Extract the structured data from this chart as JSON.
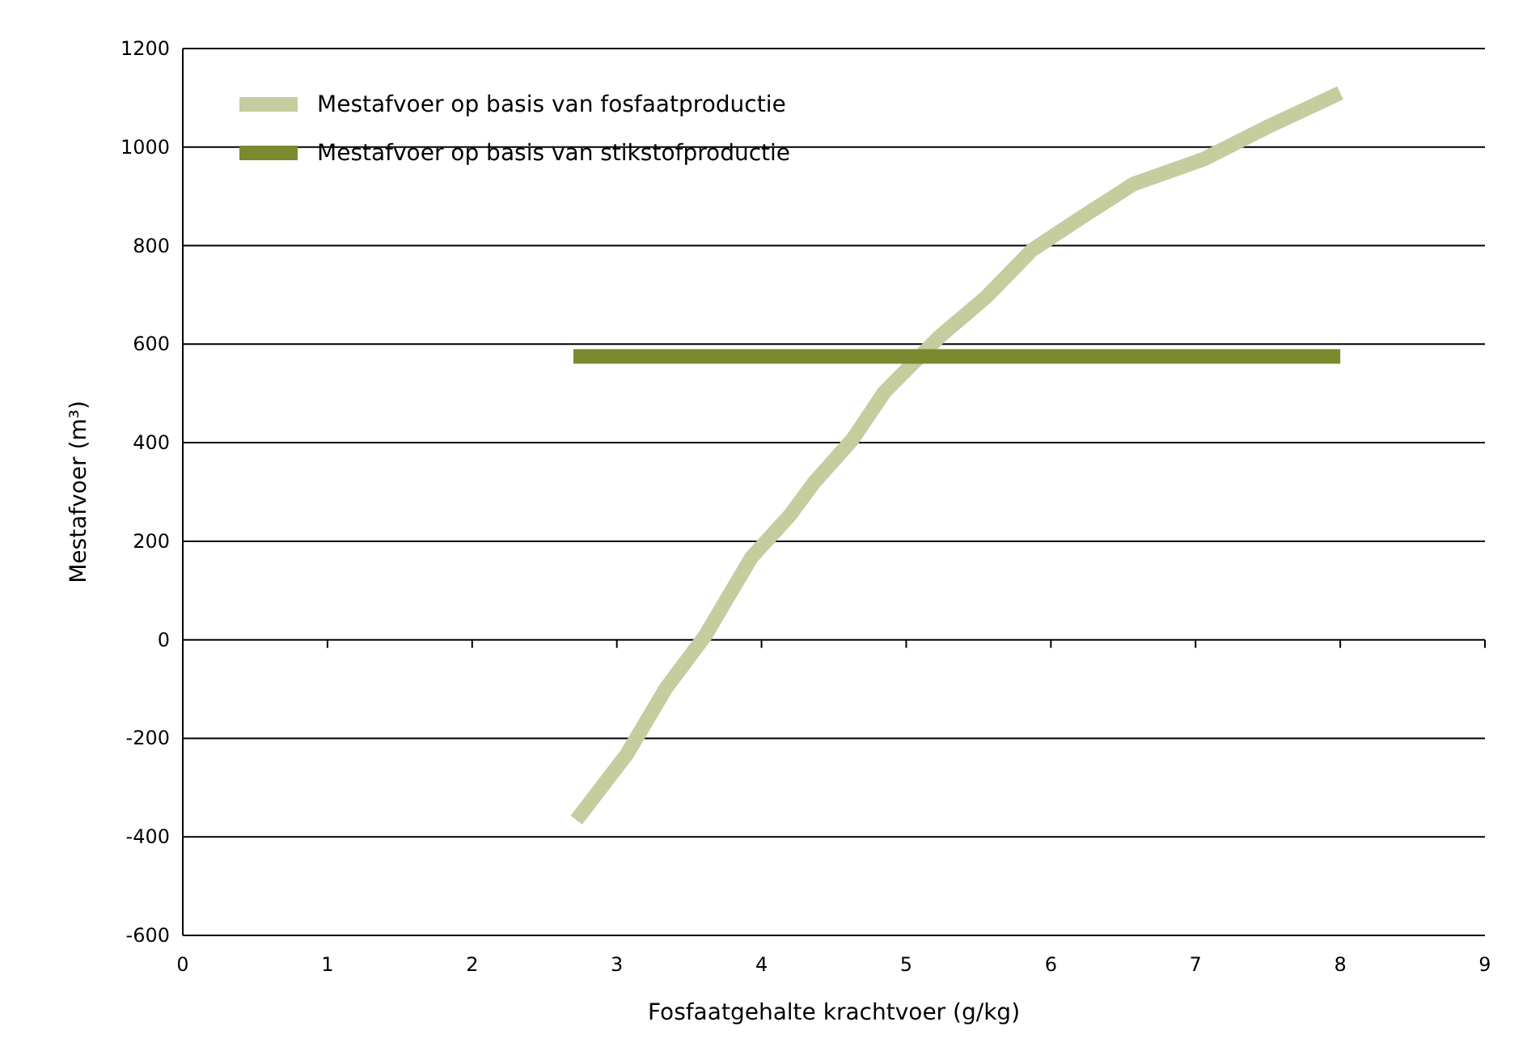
{
  "chart_data": {
    "type": "line",
    "xlabel": "Fosfaatgehalte krachtvoer (g/kg)",
    "ylabel": "Mestafvoer (m³)",
    "xlim": [
      0,
      9
    ],
    "xticks": [
      0,
      1,
      2,
      3,
      4,
      5,
      6,
      7,
      8,
      9
    ],
    "ylim": [
      -600,
      1200
    ],
    "yticks": [
      -600,
      -400,
      -200,
      0,
      200,
      400,
      600,
      800,
      1000,
      1200
    ],
    "grid": "y",
    "legend": "top left",
    "line_style": "solid",
    "marker": "none",
    "series": [
      {
        "name": "Mestafvoer op basis van fosfaatproductie",
        "color": "#c5cc9e",
        "x": [
          2.72,
          3.07,
          3.34,
          3.61,
          3.93,
          4.2,
          4.36,
          4.63,
          4.85,
          5.23,
          5.55,
          5.87,
          6.2,
          6.57,
          7.06,
          7.49,
          8.0
        ],
        "values": [
          -366,
          -232,
          -98,
          8,
          167,
          254,
          318,
          407,
          503,
          615,
          695,
          791,
          855,
          925,
          976,
          1040,
          1110
        ]
      },
      {
        "name": "Mestafvoer op basis van stikstofproductie",
        "color": "#7a8a2e",
        "x": [
          2.7,
          8.0
        ],
        "values": [
          575,
          575
        ]
      }
    ]
  }
}
